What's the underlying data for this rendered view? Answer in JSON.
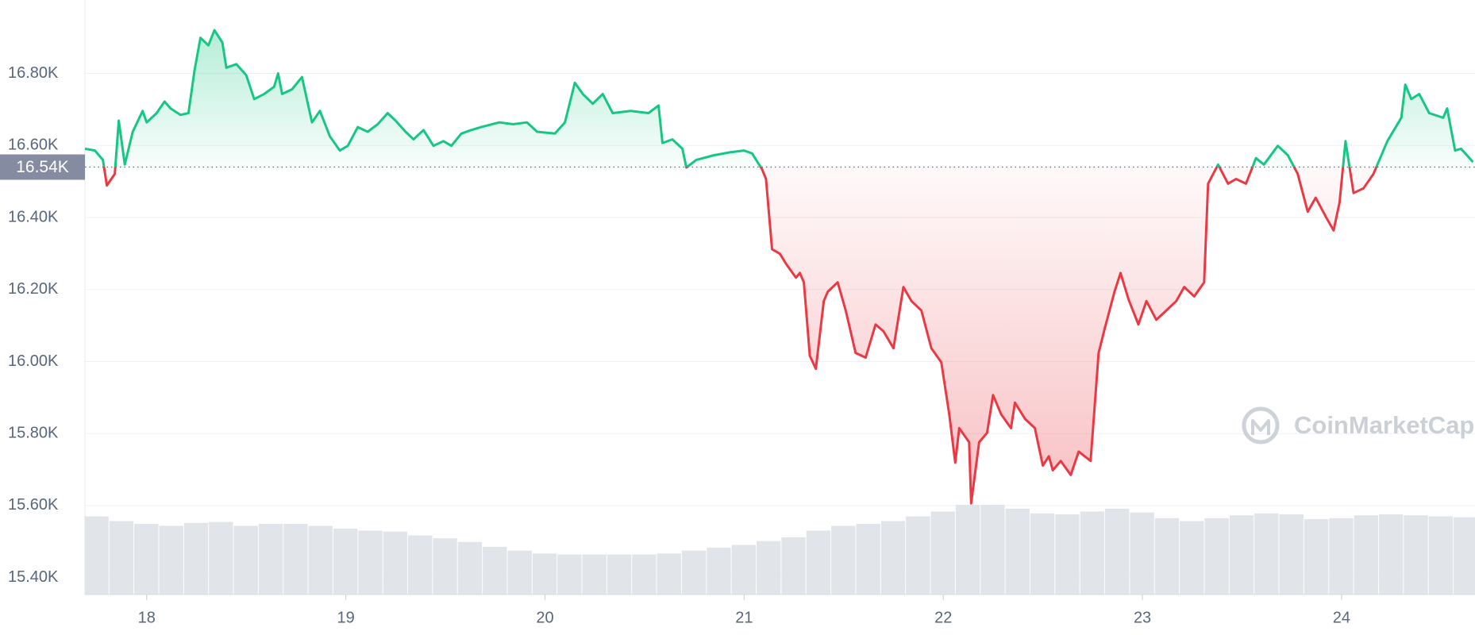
{
  "chart_data": {
    "type": "line",
    "watermark": "CoinMarketCap",
    "xlim": [
      17.69,
      24.67
    ],
    "xticks": [
      18,
      19,
      20,
      21,
      22,
      23,
      24
    ],
    "ylim": [
      15353,
      17004
    ],
    "yticks": [
      {
        "value": 15400,
        "label": "15.40K"
      },
      {
        "value": 15600,
        "label": "15.60K"
      },
      {
        "value": 15800,
        "label": "15.80K"
      },
      {
        "value": 16000,
        "label": "16.00K"
      },
      {
        "value": 16200,
        "label": "16.20K"
      },
      {
        "value": 16400,
        "label": "16.40K"
      },
      {
        "value": 16600,
        "label": "16.60K"
      },
      {
        "value": 16800,
        "label": "16.80K"
      }
    ],
    "grid": true,
    "baseline": {
      "value": 16540,
      "label": "16.54K"
    },
    "color_above": "#16c784",
    "color_below": "#ea3943",
    "x": [
      17.69,
      17.74,
      17.78,
      17.8,
      17.84,
      17.86,
      17.89,
      17.93,
      17.98,
      18.0,
      18.05,
      18.09,
      18.12,
      18.17,
      18.21,
      18.24,
      18.27,
      18.31,
      18.34,
      18.38,
      18.4,
      18.45,
      18.5,
      18.54,
      18.59,
      18.64,
      18.66,
      18.68,
      18.73,
      18.78,
      18.83,
      18.87,
      18.92,
      18.97,
      19.01,
      19.06,
      19.11,
      19.16,
      19.21,
      19.25,
      19.3,
      19.34,
      19.39,
      19.44,
      19.49,
      19.53,
      19.58,
      19.63,
      19.68,
      19.77,
      19.84,
      19.91,
      19.96,
      20.05,
      20.1,
      20.15,
      20.19,
      20.24,
      20.29,
      20.34,
      20.43,
      20.52,
      20.57,
      20.59,
      20.64,
      20.69,
      20.71,
      20.76,
      20.85,
      20.93,
      21.0,
      21.04,
      21.09,
      21.11,
      21.14,
      21.18,
      21.21,
      21.26,
      21.28,
      21.3,
      21.33,
      21.36,
      21.4,
      21.42,
      21.47,
      21.51,
      21.56,
      21.61,
      21.66,
      21.7,
      21.75,
      21.8,
      21.84,
      21.89,
      21.94,
      21.99,
      22.03,
      22.06,
      22.08,
      22.13,
      22.14,
      22.18,
      22.22,
      22.25,
      22.29,
      22.34,
      22.36,
      22.41,
      22.46,
      22.5,
      22.53,
      22.55,
      22.59,
      22.64,
      22.68,
      22.74,
      22.78,
      22.81,
      22.86,
      22.89,
      22.93,
      22.98,
      23.02,
      23.07,
      23.12,
      23.17,
      23.21,
      23.26,
      23.31,
      23.33,
      23.38,
      23.43,
      23.47,
      23.52,
      23.57,
      23.61,
      23.68,
      23.73,
      23.78,
      23.83,
      23.87,
      23.92,
      23.96,
      23.99,
      24.02,
      24.06,
      24.11,
      24.16,
      24.23,
      24.3,
      24.32,
      24.35,
      24.39,
      24.44,
      24.51,
      24.53,
      24.57,
      24.6,
      24.66
    ],
    "values": [
      16591,
      16586,
      16560,
      16489,
      16521,
      16669,
      16547,
      16638,
      16696,
      16664,
      16690,
      16722,
      16703,
      16685,
      16690,
      16808,
      16899,
      16878,
      16920,
      16886,
      16816,
      16826,
      16795,
      16729,
      16743,
      16763,
      16800,
      16743,
      16756,
      16790,
      16664,
      16696,
      16625,
      16586,
      16599,
      16651,
      16638,
      16659,
      16690,
      16669,
      16638,
      16617,
      16643,
      16599,
      16612,
      16599,
      16633,
      16643,
      16651,
      16664,
      16659,
      16664,
      16638,
      16633,
      16664,
      16774,
      16743,
      16716,
      16743,
      16690,
      16696,
      16690,
      16711,
      16607,
      16617,
      16591,
      16539,
      16560,
      16573,
      16581,
      16586,
      16578,
      16534,
      16507,
      16312,
      16299,
      16272,
      16233,
      16246,
      16220,
      16016,
      15980,
      16168,
      16194,
      16220,
      16142,
      16024,
      16011,
      16103,
      16084,
      16037,
      16207,
      16168,
      16142,
      16037,
      15998,
      15854,
      15719,
      15815,
      15776,
      15606,
      15776,
      15802,
      15907,
      15854,
      15815,
      15886,
      15841,
      15815,
      15711,
      15737,
      15698,
      15724,
      15685,
      15750,
      15724,
      16024,
      16090,
      16194,
      16246,
      16173,
      16103,
      16168,
      16116,
      16142,
      16168,
      16207,
      16181,
      16220,
      16494,
      16547,
      16494,
      16507,
      16494,
      16565,
      16547,
      16599,
      16573,
      16521,
      16416,
      16455,
      16403,
      16364,
      16442,
      16612,
      16468,
      16481,
      16521,
      16612,
      16677,
      16769,
      16729,
      16743,
      16690,
      16677,
      16703,
      16586,
      16591,
      16554
    ],
    "volume": {
      "color": "#e1e4e9",
      "x": [
        17.75,
        17.875,
        18.0,
        18.125,
        18.25,
        18.375,
        18.5,
        18.625,
        18.75,
        18.875,
        19.0,
        19.125,
        19.25,
        19.375,
        19.5,
        19.625,
        19.75,
        19.875,
        20.0,
        20.125,
        20.25,
        20.375,
        20.5,
        20.625,
        20.75,
        20.875,
        21.0,
        21.125,
        21.25,
        21.375,
        21.5,
        21.625,
        21.75,
        21.875,
        22.0,
        22.125,
        22.25,
        22.375,
        22.5,
        22.625,
        22.75,
        22.875,
        23.0,
        23.125,
        23.25,
        23.375,
        23.5,
        23.625,
        23.75,
        23.875,
        24.0,
        24.125,
        24.25,
        24.375,
        24.5,
        24.625
      ],
      "values": [
        82,
        77,
        74,
        72,
        75,
        76,
        72,
        74,
        74,
        72,
        69,
        67,
        66,
        62,
        59,
        55,
        50,
        46,
        43,
        42,
        42,
        42,
        42,
        43,
        46,
        49,
        52,
        56,
        60,
        67,
        72,
        74,
        77,
        82,
        87,
        94,
        94,
        90,
        85,
        84,
        87,
        90,
        86,
        80,
        77,
        80,
        83,
        85,
        84,
        79,
        80,
        83,
        84,
        83,
        82,
        81
      ]
    }
  }
}
